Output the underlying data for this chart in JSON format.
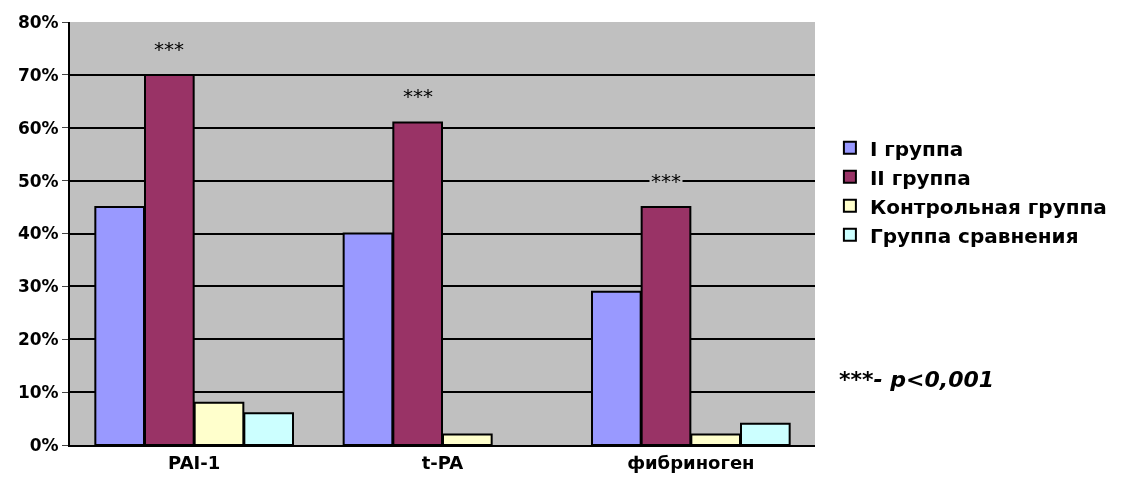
{
  "chart_data": {
    "type": "bar",
    "categories": [
      "PAI-1",
      "t-PA",
      "фибриноген"
    ],
    "series": [
      {
        "name": "I группа",
        "color": "#9999ff",
        "values": [
          45,
          40,
          29
        ]
      },
      {
        "name": "II группа",
        "color": "#993366",
        "values": [
          70,
          61,
          45
        ]
      },
      {
        "name": "Контрольная группа",
        "color": "#ffffcc",
        "values": [
          8,
          2,
          2
        ]
      },
      {
        "name": "Группа сравнения",
        "color": "#ccffff",
        "values": [
          6,
          0,
          4
        ]
      }
    ],
    "ylim": [
      0,
      80
    ],
    "yticks": [
      {
        "value": 0,
        "label": "0%"
      },
      {
        "value": 10,
        "label": "10%"
      },
      {
        "value": 20,
        "label": "20%"
      },
      {
        "value": 30,
        "label": "30%"
      },
      {
        "value": 40,
        "label": "40%"
      },
      {
        "value": 50,
        "label": "50%"
      },
      {
        "value": 60,
        "label": "60%"
      },
      {
        "value": 70,
        "label": "70%"
      },
      {
        "value": 80,
        "label": "80%"
      }
    ],
    "grid": "y",
    "legend": "right",
    "annotations": [
      {
        "text": "***",
        "x": "PAI-1",
        "y": 70
      },
      {
        "text": "***",
        "x": "t-PA",
        "y": 61
      },
      {
        "text": "***",
        "x": "фибриноген",
        "y": 45
      },
      "***- p<0,001"
    ]
  }
}
